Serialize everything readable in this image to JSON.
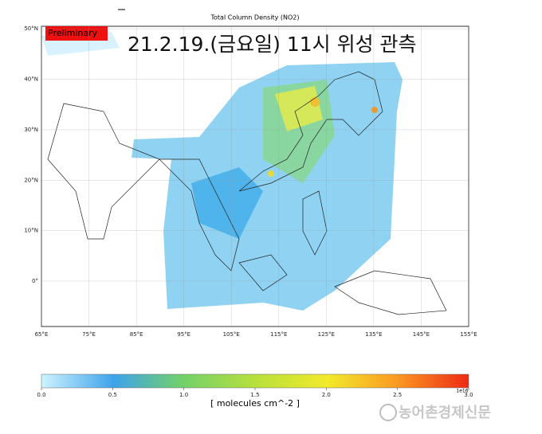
{
  "title": "Total Column Density (NO2)",
  "badge": "Preliminary",
  "headline": "21.2.19.(금요일) 11시 위성 관측",
  "map": {
    "lat_range": [
      -9,
      50.5
    ],
    "lon_range": [
      65,
      155
    ],
    "lat_ticks": [
      {
        "value": 50,
        "label": "50°N"
      },
      {
        "value": 40,
        "label": "40°N"
      },
      {
        "value": 30,
        "label": "30°N"
      },
      {
        "value": 20,
        "label": "20°N"
      },
      {
        "value": 10,
        "label": "10°N"
      },
      {
        "value": 0,
        "label": "0°"
      }
    ],
    "lon_ticks": [
      {
        "value": 65,
        "label": "65°E"
      },
      {
        "value": 75,
        "label": "75°E"
      },
      {
        "value": 85,
        "label": "85°E"
      },
      {
        "value": 95,
        "label": "95°E"
      },
      {
        "value": 105,
        "label": "105°E"
      },
      {
        "value": 115,
        "label": "115°E"
      },
      {
        "value": 125,
        "label": "125°E"
      },
      {
        "value": 135,
        "label": "135°E"
      },
      {
        "value": 145,
        "label": "145°E"
      },
      {
        "value": 155,
        "label": "155°E"
      }
    ]
  },
  "colorbar": {
    "range": [
      0,
      3
    ],
    "ticks": [
      {
        "value": 0,
        "label": "0.0"
      },
      {
        "value": 0.5,
        "label": "0.5"
      },
      {
        "value": 1,
        "label": "1.0"
      },
      {
        "value": 1.5,
        "label": "1.5"
      },
      {
        "value": 2,
        "label": "2.0"
      },
      {
        "value": 2.5,
        "label": "2.5"
      },
      {
        "value": 3,
        "label": "3.0"
      }
    ],
    "exponent": "1e16",
    "label": "[ molecules cm^-2 ]"
  },
  "watermark": "농어촌경제신문"
}
